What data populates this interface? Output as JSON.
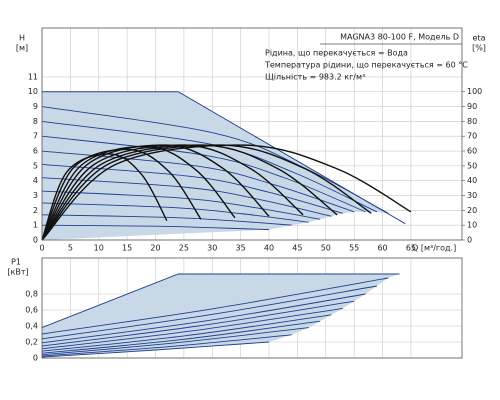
{
  "chart_data": [
    {
      "type": "line",
      "title": "MAGNA3 80-100 F, Модель D",
      "annotations": [
        "Рідина, що перекачується = Вода",
        "Температура рідини, що перекачується = 60 °C",
        "Щільність = 983.2 кг/м³"
      ],
      "ylabel": "H",
      "yunit": "[м]",
      "y2label": "eta",
      "y2unit": "[%]",
      "xlabel": "Q [м³/год.]",
      "xlim": [
        0,
        74
      ],
      "ylim": [
        0,
        14.3
      ],
      "y2lim": [
        0,
        143
      ],
      "xticks": [
        0,
        5,
        10,
        15,
        20,
        25,
        30,
        35,
        40,
        45,
        50,
        55,
        60,
        65
      ],
      "yticks": [
        0,
        1,
        2,
        3,
        4,
        5,
        6,
        7,
        8,
        9,
        10,
        11
      ],
      "y2ticks": [
        0,
        10,
        20,
        30,
        40,
        50,
        60,
        70,
        80,
        90,
        100
      ],
      "grid": true,
      "series": [
        {
          "color": "#1f3f8f",
          "fill": "#c9d8e7",
          "x": [
            0,
            24,
            64
          ],
          "values": [
            10,
            10,
            1.1
          ]
        },
        {
          "color": "#1f3f8f",
          "x": [
            0,
            30.5,
            45.75,
            61
          ],
          "values": [
            9.0,
            7.2,
            4.95,
            1.8
          ]
        },
        {
          "color": "#1f3f8f",
          "x": [
            0,
            29.5,
            44.25,
            59
          ],
          "values": [
            8.0,
            6.48,
            4.57,
            1.9
          ]
        },
        {
          "color": "#1f3f8f",
          "x": [
            0,
            28.5,
            42.75,
            57
          ],
          "values": [
            7.0,
            5.73,
            4.19,
            1.9
          ]
        },
        {
          "color": "#1f3f8f",
          "x": [
            0,
            27.5,
            41.25,
            55
          ],
          "values": [
            6.0,
            4.98,
            3.69,
            1.9
          ]
        },
        {
          "color": "#1f3f8f",
          "x": [
            0,
            26.5,
            39.75,
            53
          ],
          "values": [
            5.1,
            4.28,
            3.24,
            1.8
          ]
        },
        {
          "color": "#1f3f8f",
          "x": [
            0,
            25.5,
            38.25,
            51
          ],
          "values": [
            4.2,
            3.55,
            2.74,
            1.6
          ]
        },
        {
          "color": "#1f3f8f",
          "x": [
            0,
            24.5,
            36.75,
            49
          ],
          "values": [
            3.3,
            2.83,
            2.23,
            1.4
          ]
        },
        {
          "color": "#1f3f8f",
          "x": [
            0,
            23.5,
            35.25,
            47
          ],
          "values": [
            2.5,
            2.18,
            1.77,
            1.2
          ]
        },
        {
          "color": "#1f3f8f",
          "x": [
            0,
            22,
            33,
            44
          ],
          "values": [
            1.7,
            1.53,
            1.31,
            1.0
          ]
        },
        {
          "color": "#1f3f8f",
          "x": [
            0,
            20,
            30,
            40
          ],
          "values": [
            1.0,
            0.93,
            0.83,
            0.7
          ]
        },
        {
          "color": "#111111",
          "axis": "y2",
          "x": [
            0,
            4.4,
            12.1,
            17.6,
            22
          ],
          "values": [
            0,
            46,
            58,
            44,
            13
          ]
        },
        {
          "color": "#111111",
          "axis": "y2",
          "x": [
            0,
            5.6,
            15.4,
            22.4,
            28
          ],
          "values": [
            0,
            49,
            61,
            46,
            14
          ]
        },
        {
          "color": "#111111",
          "axis": "y2",
          "x": [
            0,
            6.8,
            18.7,
            27.2,
            34
          ],
          "values": [
            0,
            50,
            63,
            47,
            15
          ]
        },
        {
          "color": "#111111",
          "axis": "y2",
          "x": [
            0,
            8,
            22,
            32,
            40
          ],
          "values": [
            0,
            51,
            64,
            48,
            16
          ]
        },
        {
          "color": "#111111",
          "axis": "y2",
          "x": [
            0,
            9.2,
            25.3,
            36.8,
            46
          ],
          "values": [
            0,
            51,
            64,
            48,
            17
          ]
        },
        {
          "color": "#111111",
          "axis": "y2",
          "x": [
            0,
            10.4,
            28.6,
            41.6,
            52
          ],
          "values": [
            0,
            51,
            64,
            48,
            17
          ]
        },
        {
          "color": "#111111",
          "axis": "y2",
          "x": [
            0,
            11.6,
            31.9,
            46.4,
            58
          ],
          "values": [
            0,
            51,
            64,
            48,
            18
          ]
        },
        {
          "color": "#111111",
          "axis": "y2",
          "x": [
            0,
            13,
            35.75,
            52,
            65
          ],
          "values": [
            0,
            51,
            64,
            48,
            19
          ]
        }
      ]
    },
    {
      "type": "line",
      "ylabel": "P1",
      "yunit": "[кВт]",
      "xlim": [
        0,
        74
      ],
      "ylim": [
        0,
        1.25
      ],
      "xticks": [
        0,
        5,
        10,
        15,
        20,
        25,
        30,
        35,
        40,
        45,
        50,
        55,
        60,
        65
      ],
      "yticks": [
        0,
        {
          "value": 0.2,
          "label": "0,2"
        },
        {
          "value": 0.4,
          "label": "0,4"
        },
        {
          "value": 0.6,
          "label": "0,6"
        },
        {
          "value": 0.8,
          "label": "0,8"
        }
      ],
      "grid": true,
      "series": [
        {
          "color": "#1f3f8f",
          "fill": "#c9d8e7",
          "x": [
            0,
            24,
            63
          ],
          "values": [
            0.38,
            1.05,
            1.05
          ]
        },
        {
          "color": "#1f3f8f",
          "x": [
            0,
            30.5,
            61
          ],
          "values": [
            0.3,
            0.62,
            1.0
          ]
        },
        {
          "color": "#1f3f8f",
          "x": [
            0,
            29.5,
            59
          ],
          "values": [
            0.24,
            0.54,
            0.9
          ]
        },
        {
          "color": "#1f3f8f",
          "x": [
            0,
            28.5,
            57
          ],
          "values": [
            0.19,
            0.46,
            0.8
          ]
        },
        {
          "color": "#1f3f8f",
          "x": [
            0,
            27.5,
            55
          ],
          "values": [
            0.15,
            0.4,
            0.71
          ]
        },
        {
          "color": "#1f3f8f",
          "x": [
            0,
            26.5,
            53
          ],
          "values": [
            0.115,
            0.34,
            0.62
          ]
        },
        {
          "color": "#1f3f8f",
          "x": [
            0,
            25.5,
            51
          ],
          "values": [
            0.085,
            0.28,
            0.54
          ]
        },
        {
          "color": "#1f3f8f",
          "x": [
            0,
            24.5,
            49
          ],
          "values": [
            0.06,
            0.23,
            0.46
          ]
        },
        {
          "color": "#1f3f8f",
          "x": [
            0,
            23.5,
            47
          ],
          "values": [
            0.04,
            0.19,
            0.38
          ]
        },
        {
          "color": "#1f3f8f",
          "x": [
            0,
            22,
            44
          ],
          "values": [
            0.025,
            0.14,
            0.29
          ]
        },
        {
          "color": "#1f3f8f",
          "x": [
            0,
            20,
            40
          ],
          "values": [
            0.012,
            0.1,
            0.2
          ]
        }
      ]
    }
  ]
}
